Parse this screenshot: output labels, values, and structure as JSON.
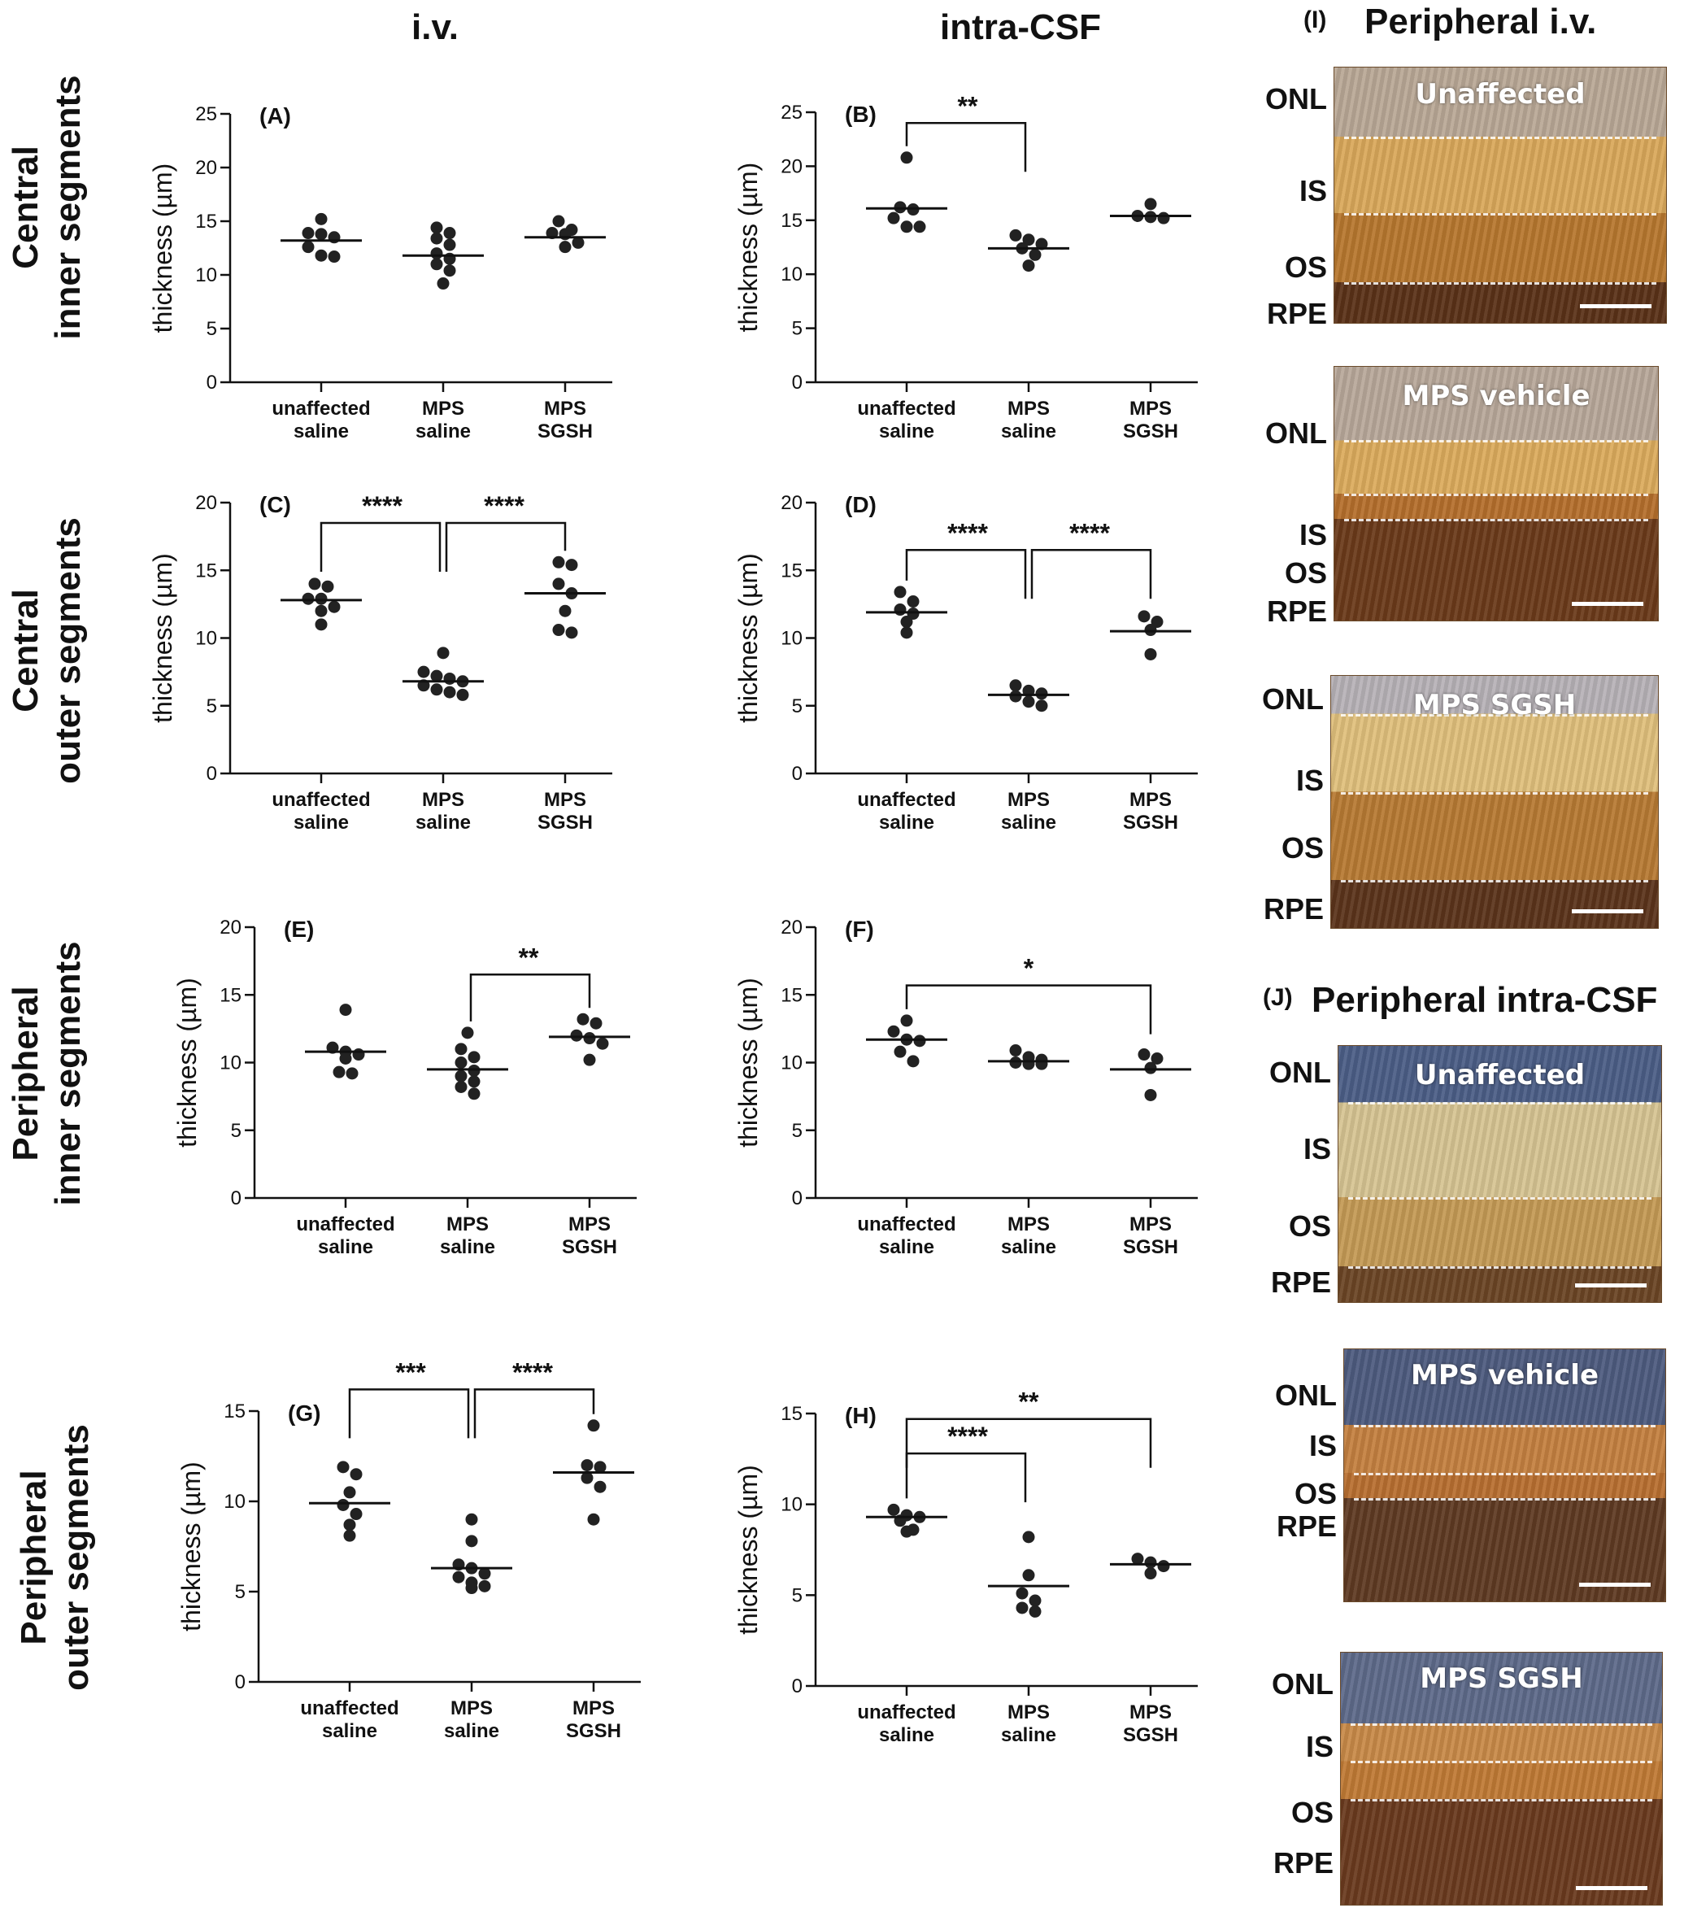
{
  "column_titles": [
    "i.v.",
    "intra-CSF"
  ],
  "row_titles": [
    [
      "Central",
      "inner segments"
    ],
    [
      "Central",
      "outer segments"
    ],
    [
      "Peripheral",
      "inner segments"
    ],
    [
      "Peripheral",
      "outer segments"
    ]
  ],
  "colors": {
    "dot": "#222222",
    "axis": "#111111"
  },
  "chart_data": [
    {
      "panel": "(A)",
      "type": "scatter",
      "ylabel": "thickness (µm)",
      "ylim": [
        0,
        25
      ],
      "yticks": [
        0,
        5,
        10,
        15,
        20,
        25
      ],
      "categories": [
        [
          "unaffected",
          "saline"
        ],
        [
          "MPS",
          "saline"
        ],
        [
          "MPS",
          "SGSH"
        ]
      ],
      "points": [
        [
          13.8,
          13.5,
          15.2,
          13.9,
          12.6,
          11.8,
          11.7
        ],
        [
          14.4,
          13.9,
          13.4,
          12.8,
          12.0,
          11.5,
          11.0,
          10.4,
          9.2
        ],
        [
          15.0,
          14.2,
          13.9,
          13.8,
          13.0,
          12.6
        ]
      ],
      "means": [
        13.2,
        11.8,
        13.5
      ],
      "significance": []
    },
    {
      "panel": "(B)",
      "type": "scatter",
      "ylabel": "thickness (µm)",
      "ylim": [
        0,
        25
      ],
      "yticks": [
        0,
        5,
        10,
        15,
        20,
        25
      ],
      "categories": [
        [
          "unaffected",
          "saline"
        ],
        [
          "MPS",
          "saline"
        ],
        [
          "MPS",
          "SGSH"
        ]
      ],
      "points": [
        [
          20.8,
          16.2,
          16.0,
          15.2,
          14.4,
          14.4
        ],
        [
          13.6,
          13.2,
          12.8,
          12.4,
          11.8,
          10.8
        ],
        [
          16.5,
          15.4,
          15.3,
          15.2
        ]
      ],
      "means": [
        16.1,
        12.4,
        15.4
      ],
      "significance": [
        {
          "from": 0,
          "to": 1,
          "label": "**",
          "y": 24.0
        }
      ]
    },
    {
      "panel": "(C)",
      "type": "scatter",
      "ylabel": "thickness (µm)",
      "ylim": [
        0,
        20
      ],
      "yticks": [
        0,
        5,
        10,
        15,
        20
      ],
      "categories": [
        [
          "unaffected",
          "saline"
        ],
        [
          "MPS",
          "saline"
        ],
        [
          "MPS",
          "SGSH"
        ]
      ],
      "points": [
        [
          14.0,
          13.8,
          12.9,
          12.9,
          12.3,
          12.0,
          11.0
        ],
        [
          8.9,
          7.5,
          7.2,
          7.0,
          6.8,
          6.5,
          6.2,
          6.0,
          5.8
        ],
        [
          15.6,
          15.4,
          14.0,
          13.3,
          12.0,
          10.6,
          10.4
        ]
      ],
      "means": [
        12.8,
        6.8,
        13.3
      ],
      "significance": [
        {
          "from": 0,
          "to": 1,
          "label": "****",
          "y": 18.5
        },
        {
          "from": 1,
          "to": 2,
          "label": "****",
          "y": 18.5
        }
      ]
    },
    {
      "panel": "(D)",
      "type": "scatter",
      "ylabel": "thickness (µm)",
      "ylim": [
        0,
        20
      ],
      "yticks": [
        0,
        5,
        10,
        15,
        20
      ],
      "categories": [
        [
          "unaffected",
          "saline"
        ],
        [
          "MPS",
          "saline"
        ],
        [
          "MPS",
          "SGSH"
        ]
      ],
      "points": [
        [
          13.4,
          12.7,
          12.1,
          11.8,
          11.2,
          10.4
        ],
        [
          6.5,
          6.1,
          5.9,
          5.7,
          5.3,
          5.0
        ],
        [
          11.6,
          11.2,
          10.6,
          8.8
        ]
      ],
      "means": [
        11.9,
        5.8,
        10.5
      ],
      "significance": [
        {
          "from": 0,
          "to": 1,
          "label": "****",
          "y": 16.5
        },
        {
          "from": 1,
          "to": 2,
          "label": "****",
          "y": 16.5
        }
      ]
    },
    {
      "panel": "(E)",
      "type": "scatter",
      "ylabel": "thickness (µm)",
      "ylim": [
        0,
        20
      ],
      "yticks": [
        0,
        5,
        10,
        15,
        20
      ],
      "categories": [
        [
          "unaffected",
          "saline"
        ],
        [
          "MPS",
          "saline"
        ],
        [
          "MPS",
          "SGSH"
        ]
      ],
      "points": [
        [
          13.9,
          11.1,
          10.8,
          10.6,
          10.3,
          9.3,
          9.2
        ],
        [
          12.2,
          11.0,
          10.4,
          10.0,
          9.4,
          9.0,
          8.6,
          8.2,
          7.7
        ],
        [
          13.2,
          12.9,
          12.0,
          11.8,
          11.4,
          10.2
        ]
      ],
      "means": [
        10.8,
        9.5,
        11.9
      ],
      "significance": [
        {
          "from": 1,
          "to": 2,
          "label": "**",
          "y": 16.5
        }
      ]
    },
    {
      "panel": "(F)",
      "type": "scatter",
      "ylabel": "thickness (µm)",
      "ylim": [
        0,
        20
      ],
      "yticks": [
        0,
        5,
        10,
        15,
        20
      ],
      "categories": [
        [
          "unaffected",
          "saline"
        ],
        [
          "MPS",
          "saline"
        ],
        [
          "MPS",
          "SGSH"
        ]
      ],
      "points": [
        [
          13.1,
          12.3,
          11.7,
          11.6,
          10.8,
          10.1
        ],
        [
          10.9,
          10.4,
          10.2,
          10.0,
          9.9,
          9.9
        ],
        [
          10.6,
          10.3,
          9.6,
          7.6
        ]
      ],
      "means": [
        11.7,
        10.1,
        9.5
      ],
      "significance": [
        {
          "from": 0,
          "to": 2,
          "label": "*",
          "y": 15.7
        }
      ]
    },
    {
      "panel": "(G)",
      "type": "scatter",
      "ylabel": "thickness (µm)",
      "ylim": [
        0,
        15
      ],
      "yticks": [
        0,
        5,
        10,
        15
      ],
      "categories": [
        [
          "unaffected",
          "saline"
        ],
        [
          "MPS",
          "saline"
        ],
        [
          "MPS",
          "SGSH"
        ]
      ],
      "points": [
        [
          11.9,
          11.5,
          10.5,
          9.8,
          9.3,
          8.7,
          8.1
        ],
        [
          9.0,
          7.8,
          6.5,
          6.3,
          6.0,
          5.8,
          5.5,
          5.3,
          5.2
        ],
        [
          14.2,
          12.0,
          11.9,
          11.3,
          10.8,
          9.0
        ]
      ],
      "means": [
        9.9,
        6.3,
        11.6
      ],
      "significance": [
        {
          "from": 0,
          "to": 1,
          "label": "***",
          "y": 16.2
        },
        {
          "from": 1,
          "to": 2,
          "label": "****",
          "y": 16.2
        }
      ]
    },
    {
      "panel": "(H)",
      "type": "scatter",
      "ylabel": "thickness (µm)",
      "ylim": [
        0,
        15
      ],
      "yticks": [
        0,
        5,
        10,
        15
      ],
      "categories": [
        [
          "unaffected",
          "saline"
        ],
        [
          "MPS",
          "saline"
        ],
        [
          "MPS",
          "SGSH"
        ]
      ],
      "points": [
        [
          9.7,
          9.4,
          9.3,
          9.1,
          8.6,
          8.5
        ],
        [
          8.2,
          6.1,
          5.1,
          4.7,
          4.3,
          4.1
        ],
        [
          7.0,
          6.8,
          6.6,
          6.2
        ]
      ],
      "means": [
        9.3,
        5.5,
        6.7
      ],
      "significance": [
        {
          "from": 0,
          "to": 1,
          "label": "****",
          "y": 12.8
        },
        {
          "from": 0,
          "to": 2,
          "label": "**",
          "y": 14.7
        }
      ]
    }
  ],
  "image_panels": {
    "I": {
      "label": "(I)",
      "heading": "Peripheral i.v.",
      "images": [
        {
          "title": "Unaffected",
          "layers": [
            "ONL",
            "IS",
            "OS",
            "RPE"
          ]
        },
        {
          "title": "MPS vehicle",
          "layers": [
            "ONL",
            "IS",
            "OS",
            "RPE"
          ]
        },
        {
          "title": "MPS SGSH",
          "layers": [
            "ONL",
            "IS",
            "OS",
            "RPE"
          ]
        }
      ]
    },
    "J": {
      "label": "(J)",
      "heading": "Peripheral intra-CSF",
      "images": [
        {
          "title": "Unaffected",
          "layers": [
            "ONL",
            "IS",
            "OS",
            "RPE"
          ]
        },
        {
          "title": "MPS vehicle",
          "layers": [
            "ONL",
            "IS",
            "OS",
            "RPE"
          ]
        },
        {
          "title": "MPS SGSH",
          "layers": [
            "ONL",
            "IS",
            "OS",
            "RPE"
          ]
        }
      ]
    }
  }
}
